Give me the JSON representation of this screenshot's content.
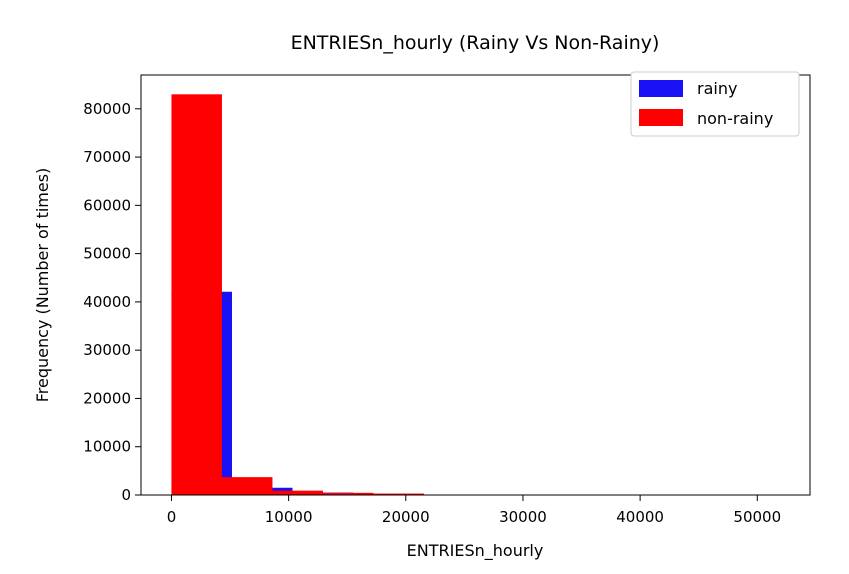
{
  "chart_data": {
    "type": "bar",
    "title": "ENTRIESn_hourly (Rainy Vs Non-Rainy)",
    "xlabel": "ENTRIESn_hourly",
    "ylabel": "Frequency (Number of times)",
    "xlim": [
      -2600,
      54500
    ],
    "ylim": [
      0,
      87000
    ],
    "xticks": [
      0,
      10000,
      20000,
      30000,
      40000,
      50000
    ],
    "yticks": [
      0,
      10000,
      20000,
      30000,
      40000,
      50000,
      60000,
      70000,
      80000
    ],
    "grid": false,
    "legend_position": "top-right",
    "series": [
      {
        "name": "rainy",
        "color": "#1a10f5",
        "bins": [
          {
            "x0": 0,
            "x1": 5166,
            "count": 42100
          },
          {
            "x0": 5166,
            "x1": 10332,
            "count": 1500
          },
          {
            "x0": 10332,
            "x1": 15498,
            "count": 500
          },
          {
            "x0": 15498,
            "x1": 20664,
            "count": 150
          },
          {
            "x0": 20664,
            "x1": 25830,
            "count": 40
          },
          {
            "x0": 25830,
            "x1": 30996,
            "count": 15
          },
          {
            "x0": 30996,
            "x1": 36162,
            "count": 6
          },
          {
            "x0": 36162,
            "x1": 41328,
            "count": 3
          },
          {
            "x0": 41328,
            "x1": 46494,
            "count": 2
          },
          {
            "x0": 46494,
            "x1": 51660,
            "count": 1
          }
        ]
      },
      {
        "name": "non-rainy",
        "color": "#ff0000",
        "bins": [
          {
            "x0": 0,
            "x1": 4310,
            "count": 83000
          },
          {
            "x0": 4310,
            "x1": 8620,
            "count": 3700
          },
          {
            "x0": 8620,
            "x1": 12930,
            "count": 900
          },
          {
            "x0": 12930,
            "x1": 17240,
            "count": 450
          },
          {
            "x0": 17240,
            "x1": 21550,
            "count": 300
          }
        ]
      }
    ]
  }
}
